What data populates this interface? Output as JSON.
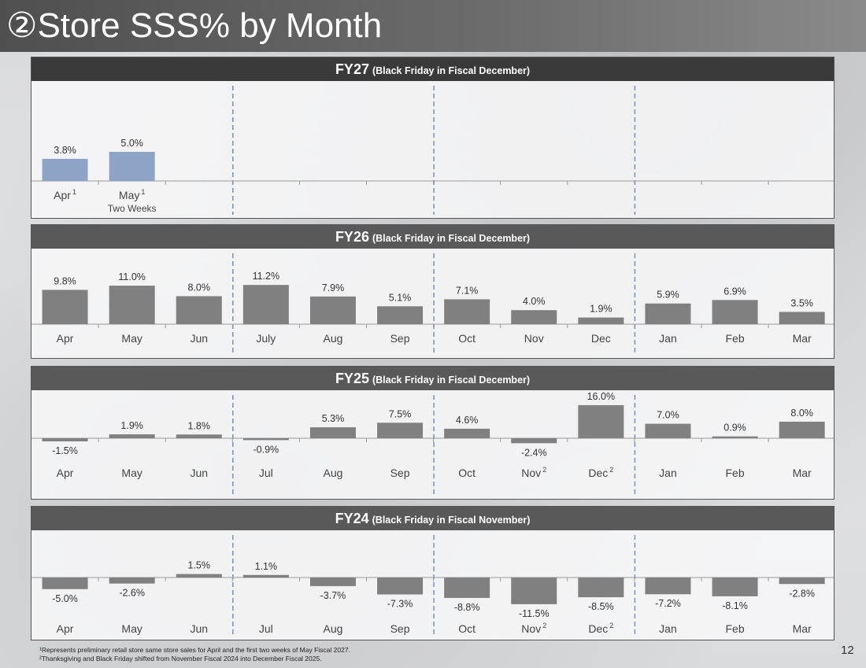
{
  "title": "②Store SSS% by Month",
  "page_number": "12",
  "footnotes": [
    "¹Represents preliminary retail store same store sales for April and the first two weeks of May Fiscal 2027.",
    "²Thanksgiving and Black Friday shifted from November Fiscal 2024 into December Fiscal 2025."
  ],
  "colors": {
    "fy27_bar": "#8ea4c6",
    "bar": "#808080",
    "header": "#595959",
    "header_dark": "#3a3a3a",
    "divider": "#7d90b0"
  },
  "chart_data": [
    {
      "type": "bar",
      "title": "FY27",
      "subtitle": "(Black Friday in Fiscal December)",
      "categories": [
        "Apr",
        "May"
      ],
      "category_superscripts": [
        "1",
        "1"
      ],
      "category_notes": [
        "",
        "Two Weeks"
      ],
      "values": [
        3.8,
        5.0
      ],
      "value_labels": [
        "3.8%",
        "5.0%"
      ],
      "slots": 12
    },
    {
      "type": "bar",
      "title": "FY26",
      "subtitle": "(Black Friday in Fiscal December)",
      "categories": [
        "Apr",
        "May",
        "Jun",
        "July",
        "Aug",
        "Sep",
        "Oct",
        "Nov",
        "Dec",
        "Jan",
        "Feb",
        "Mar"
      ],
      "category_superscripts": [
        "",
        "",
        "",
        "",
        "",
        "",
        "",
        "",
        "",
        "",
        "",
        ""
      ],
      "values": [
        9.8,
        11.0,
        8.0,
        11.2,
        7.9,
        5.1,
        7.1,
        4.0,
        1.9,
        5.9,
        6.9,
        3.5
      ],
      "value_labels": [
        "9.8%",
        "11.0%",
        "8.0%",
        "11.2%",
        "7.9%",
        "5.1%",
        "7.1%",
        "4.0%",
        "1.9%",
        "5.9%",
        "6.9%",
        "3.5%"
      ],
      "slots": 12
    },
    {
      "type": "bar",
      "title": "FY25",
      "subtitle": "(Black Friday in Fiscal December)",
      "categories": [
        "Apr",
        "May",
        "Jun",
        "Jul",
        "Aug",
        "Sep",
        "Oct",
        "Nov",
        "Dec",
        "Jan",
        "Feb",
        "Mar"
      ],
      "category_superscripts": [
        "",
        "",
        "",
        "",
        "",
        "",
        "",
        "2",
        "2",
        "",
        "",
        ""
      ],
      "values": [
        -1.5,
        1.9,
        1.8,
        -0.9,
        5.3,
        7.5,
        4.6,
        -2.4,
        16.0,
        7.0,
        0.9,
        8.0
      ],
      "value_labels": [
        "-1.5%",
        "1.9%",
        "1.8%",
        "-0.9%",
        "5.3%",
        "7.5%",
        "4.6%",
        "-2.4%",
        "16.0%",
        "7.0%",
        "0.9%",
        "8.0%"
      ],
      "slots": 12
    },
    {
      "type": "bar",
      "title": "FY24",
      "subtitle": "(Black Friday in Fiscal November)",
      "categories": [
        "Apr",
        "May",
        "Jun",
        "Jul",
        "Aug",
        "Sep",
        "Oct",
        "Nov",
        "Dec",
        "Jan",
        "Feb",
        "Mar"
      ],
      "category_superscripts": [
        "",
        "",
        "",
        "",
        "",
        "",
        "",
        "2",
        "2",
        "",
        "",
        ""
      ],
      "values": [
        -5.0,
        -2.6,
        1.5,
        1.1,
        -3.7,
        -7.3,
        -8.8,
        -11.5,
        -8.5,
        -7.2,
        -8.1,
        -2.8
      ],
      "value_labels": [
        "-5.0%",
        "-2.6%",
        "1.5%",
        "1.1%",
        "-3.7%",
        "-7.3%",
        "-8.8%",
        "-11.5%",
        "-8.5%",
        "-7.2%",
        "-8.1%",
        "-2.8%"
      ],
      "slots": 12
    }
  ]
}
